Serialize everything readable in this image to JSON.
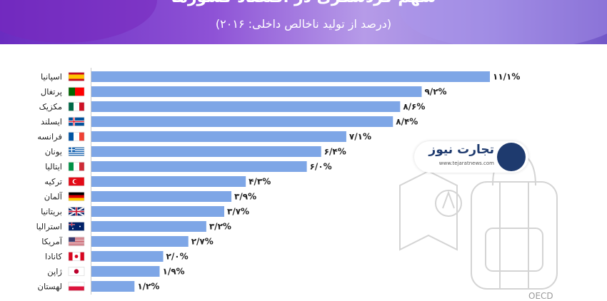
{
  "header": {
    "title": "سهم گردشگری در اقتصاد کشورها",
    "subtitle": "(درصد از تولید ناخالص داخلی: ۲۰۱۶)"
  },
  "colors": {
    "bar": "#7ea6e6",
    "header_start": "#6a2cc0",
    "header_end": "#7257c8"
  },
  "watermark": {
    "name": "تجارت نیوز",
    "url": "www.tejaratnews.com"
  },
  "source": "OECD",
  "chart_data": {
    "type": "bar",
    "orientation": "horizontal",
    "title": "سهم گردشگری در اقتصاد کشورها",
    "subtitle": "(درصد از تولید ناخالص داخلی: ۲۰۱۶)",
    "categories": [
      "اسپانیا",
      "پرتغال",
      "مکزیک",
      "ایسلند",
      "فرانسه",
      "یونان",
      "ایتالیا",
      "ترکیه",
      "آلمان",
      "بریتانیا",
      "استرالیا",
      "آمریکا",
      "کانادا",
      "ژاپن",
      "لهستان"
    ],
    "values": [
      11.1,
      9.2,
      8.6,
      8.4,
      7.1,
      6.4,
      6.0,
      4.3,
      3.9,
      3.7,
      3.2,
      2.7,
      2.0,
      1.9,
      1.2
    ],
    "value_labels": [
      "۱۱/۱%",
      "۹/۲%",
      "۸/۶%",
      "۸/۴%",
      "۷/۱%",
      "۶/۴%",
      "۶/۰%",
      "۴/۳%",
      "۳/۹%",
      "۳/۷%",
      "۳/۲%",
      "۲/۷%",
      "۲/۰%",
      "۱/۹%",
      "۱/۲%"
    ],
    "flags": [
      "spain-flag",
      "portugal-flag",
      "mexico-flag",
      "iceland-flag",
      "france-flag",
      "greece-flag",
      "italy-flag",
      "turkey-flag",
      "germany-flag",
      "uk-flag",
      "australia-flag",
      "usa-flag",
      "canada-flag",
      "japan-flag",
      "poland-flag"
    ],
    "xlim": [
      0,
      11.1
    ],
    "grid": false,
    "legend": "none"
  }
}
